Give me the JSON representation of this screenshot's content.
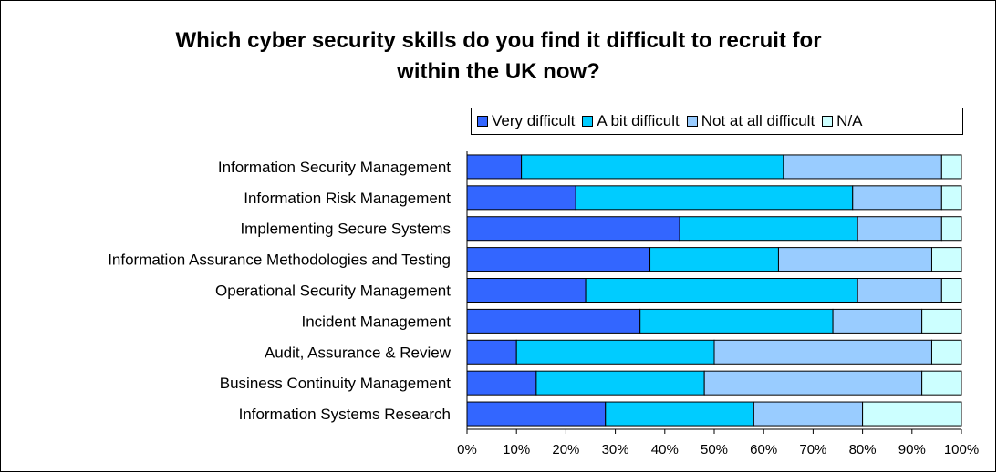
{
  "chart_data": {
    "type": "bar",
    "orientation": "horizontal",
    "stacked": "100%",
    "title_lines": [
      "Which cyber security skills do you find it difficult to recruit for",
      "within the UK now?"
    ],
    "xlabel": "",
    "ylabel": "",
    "xlim": [
      0,
      100
    ],
    "x_ticks": [
      "0%",
      "10%",
      "20%",
      "30%",
      "40%",
      "50%",
      "60%",
      "70%",
      "80%",
      "90%",
      "100%"
    ],
    "grid": false,
    "legend_position": "top-right",
    "categories": [
      "Information Security Management",
      "Information Risk Management",
      "Implementing Secure Systems",
      "Information Assurance Methodologies and Testing",
      "Operational Security Management",
      "Incident Management",
      "Audit, Assurance & Review",
      "Business Continuity Management",
      "Information Systems Research"
    ],
    "series": [
      {
        "name": "Very difficult",
        "color": "#3366ff",
        "values": [
          11,
          22,
          43,
          37,
          24,
          35,
          10,
          14,
          28
        ]
      },
      {
        "name": "A bit difficult",
        "color": "#00ccff",
        "values": [
          53,
          56,
          36,
          26,
          55,
          39,
          40,
          34,
          30
        ]
      },
      {
        "name": "Not at all difficult",
        "color": "#99ccff",
        "values": [
          32,
          18,
          17,
          31,
          17,
          18,
          44,
          44,
          22
        ]
      },
      {
        "name": "N/A",
        "color": "#ccffff",
        "values": [
          4,
          4,
          4,
          6,
          4,
          8,
          6,
          8,
          20
        ]
      }
    ]
  }
}
